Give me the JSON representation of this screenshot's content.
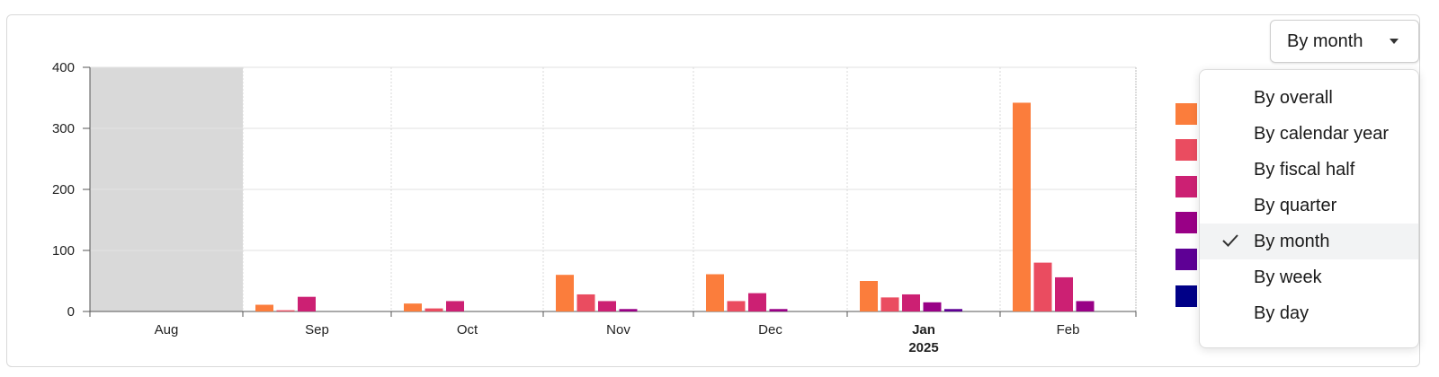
{
  "period_selector": {
    "label": "By month"
  },
  "menu": {
    "items": [
      {
        "label": "By overall",
        "selected": false
      },
      {
        "label": "By calendar year",
        "selected": false
      },
      {
        "label": "By fiscal half",
        "selected": false
      },
      {
        "label": "By quarter",
        "selected": false
      },
      {
        "label": "By month",
        "selected": true
      },
      {
        "label": "By week",
        "selected": false
      },
      {
        "label": "By day",
        "selected": false
      }
    ]
  },
  "colors": {
    "series": [
      "#fb7d3c",
      "#ea4c60",
      "#cc2073",
      "#990086",
      "#5e0095",
      "#000087"
    ],
    "shaded_region": "#d9d9d9"
  },
  "chart_data": {
    "type": "bar",
    "categories": [
      "Aug",
      "Sep",
      "Oct",
      "Nov",
      "Dec",
      "Jan",
      "Feb"
    ],
    "category_sublabels": [
      "",
      "",
      "",
      "",
      "",
      "2025",
      ""
    ],
    "bold_categories": [
      "Jan"
    ],
    "shaded_categories": [
      "Aug"
    ],
    "series": [
      {
        "values": [
          0,
          11,
          13,
          60,
          61,
          50,
          342
        ]
      },
      {
        "values": [
          0,
          2,
          5,
          28,
          17,
          23,
          80
        ]
      },
      {
        "values": [
          0,
          24,
          17,
          17,
          30,
          28,
          56
        ]
      },
      {
        "values": [
          0,
          0,
          0,
          4,
          4,
          15,
          17
        ]
      },
      {
        "values": [
          0,
          0,
          0,
          0,
          0,
          4,
          0
        ]
      },
      {
        "values": [
          0,
          0,
          0,
          0,
          0,
          0,
          0
        ]
      }
    ],
    "ylim": [
      0,
      400
    ],
    "yticks": [
      0,
      100,
      200,
      300,
      400
    ],
    "grid": true,
    "legend_position": "right"
  }
}
